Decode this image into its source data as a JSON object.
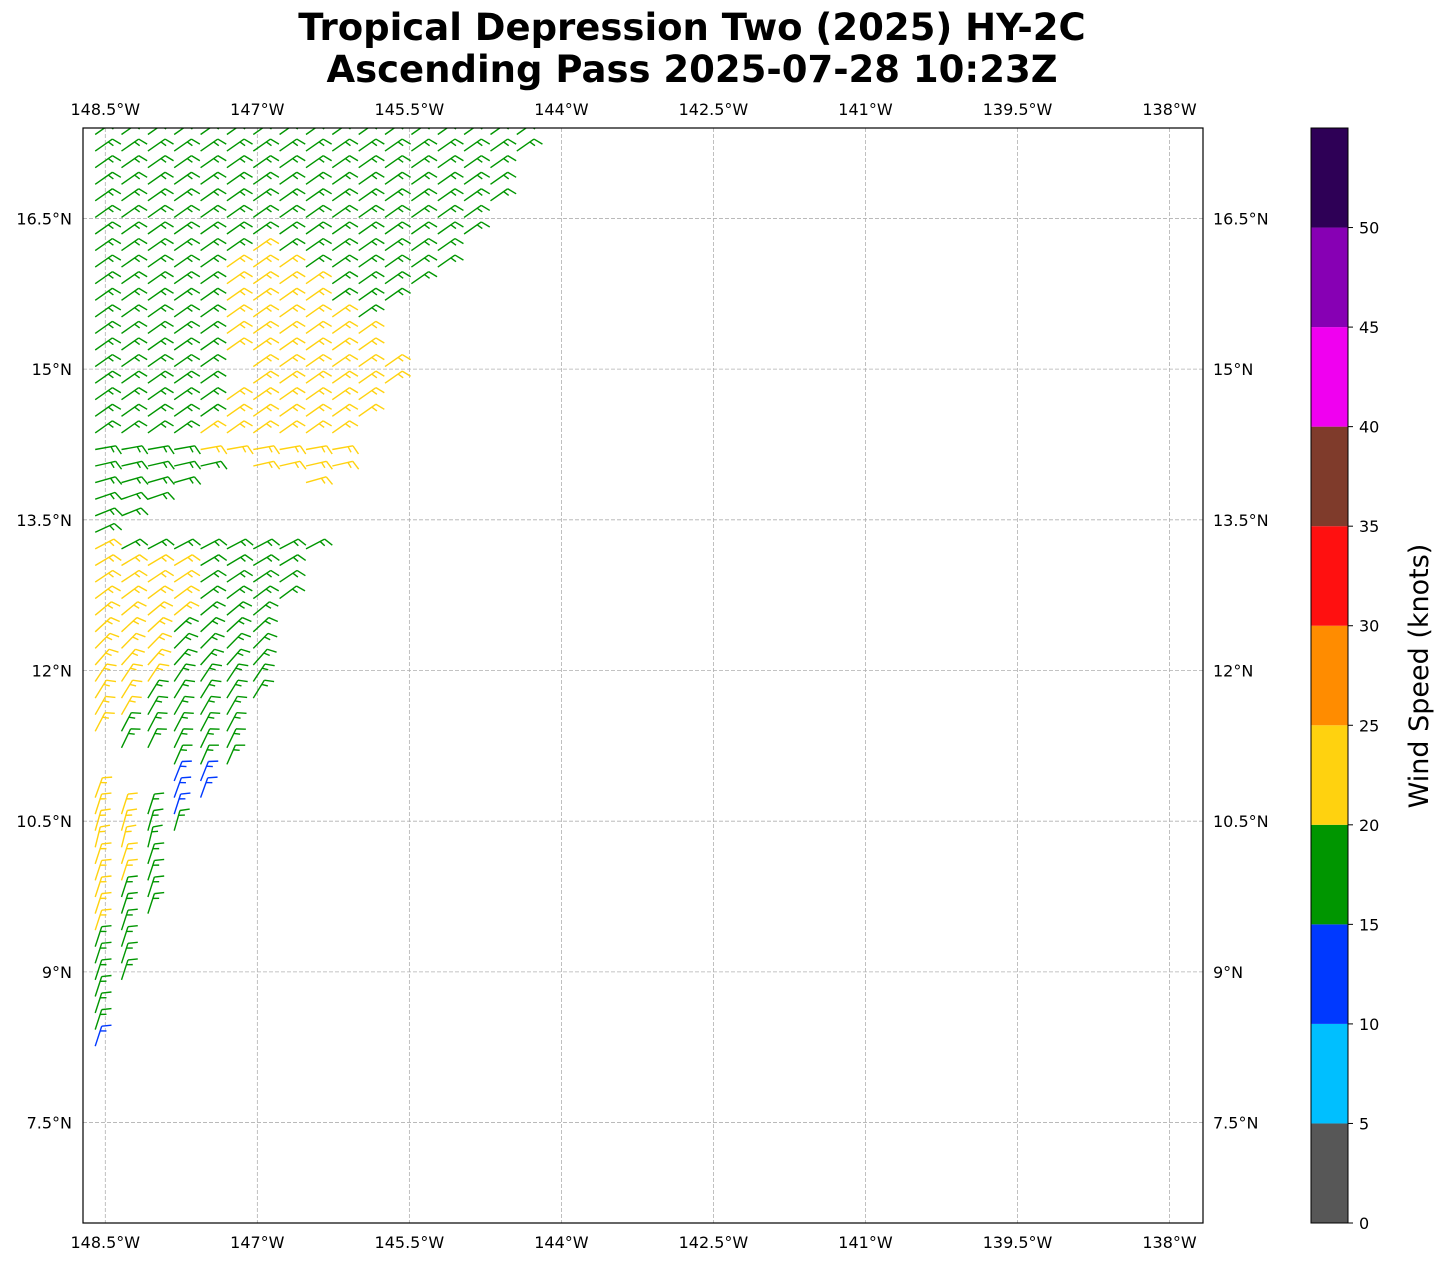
{
  "title": {
    "line1": "Tropical Depression Two (2025) HY-2C",
    "line2": "Ascending Pass 2025-07-28 10:23Z"
  },
  "colorbar": {
    "label": "Wind Speed (knots)",
    "ticks": [
      "0",
      "5",
      "10",
      "15",
      "20",
      "25",
      "30",
      "35",
      "40",
      "45",
      "50"
    ],
    "bins": [
      {
        "min": 0,
        "max": 5,
        "color": "#575757"
      },
      {
        "min": 5,
        "max": 10,
        "color": "#00bfff"
      },
      {
        "min": 10,
        "max": 15,
        "color": "#0039ff"
      },
      {
        "min": 15,
        "max": 20,
        "color": "#009600"
      },
      {
        "min": 20,
        "max": 25,
        "color": "#ffd20f"
      },
      {
        "min": 25,
        "max": 30,
        "color": "#ff8c00"
      },
      {
        "min": 30,
        "max": 35,
        "color": "#ff1010"
      },
      {
        "min": 35,
        "max": 40,
        "color": "#7f3b2b"
      },
      {
        "min": 40,
        "max": 45,
        "color": "#f000f0"
      },
      {
        "min": 45,
        "max": 50,
        "color": "#8700b4"
      },
      {
        "min": 50,
        "max": 55,
        "color": "#2e0056"
      }
    ]
  },
  "chart_data": {
    "type": "map",
    "title": "Tropical Depression Two (2025) HY-2C Ascending Pass 2025-07-28 10:23Z",
    "extent": {
      "lon_min": -148.72,
      "lon_max": -137.67,
      "lat_min": 6.5,
      "lat_max": 17.4
    },
    "grid": true,
    "lon_ticks": [
      {
        "value": -148.5,
        "label": "148.5°W"
      },
      {
        "value": -147.0,
        "label": "147°W"
      },
      {
        "value": -145.5,
        "label": "145.5°W"
      },
      {
        "value": -144.0,
        "label": "144°W"
      },
      {
        "value": -142.5,
        "label": "142.5°W"
      },
      {
        "value": -141.0,
        "label": "141°W"
      },
      {
        "value": -139.5,
        "label": "139.5°W"
      },
      {
        "value": -138.0,
        "label": "138°W"
      }
    ],
    "lat_ticks": [
      {
        "value": 16.5,
        "label": "16.5°N"
      },
      {
        "value": 15.0,
        "label": "15°N"
      },
      {
        "value": 13.5,
        "label": "13.5°N"
      },
      {
        "value": 12.0,
        "label": "12°N"
      },
      {
        "value": 10.5,
        "label": "10.5°N"
      },
      {
        "value": 9.0,
        "label": "9°N"
      },
      {
        "value": 7.5,
        "label": "7.5°N"
      }
    ],
    "swath": {
      "eastern_edge": [
        [
          7.7,
          -148.65
        ],
        [
          8.5,
          -148.4
        ],
        [
          9.5,
          -148.05
        ],
        [
          10.4,
          -147.72
        ],
        [
          10.9,
          -147.25
        ],
        [
          11.5,
          -147.0
        ],
        [
          12.3,
          -146.9
        ],
        [
          13.2,
          -146.4
        ],
        [
          14.0,
          -146.2
        ],
        [
          15.0,
          -145.6
        ],
        [
          16.2,
          -145.0
        ],
        [
          17.4,
          -144.1
        ]
      ],
      "western_edge_lon": -148.72
    },
    "wind_regions": [
      {
        "speed_class": "15-20 kt",
        "color": "#009600",
        "polygon": [
          [
            17.4,
            -148.72
          ],
          [
            17.4,
            -144.1
          ],
          [
            16.2,
            -145.0
          ],
          [
            15.5,
            -145.8
          ],
          [
            15.0,
            -147.5
          ],
          [
            14.0,
            -147.4
          ],
          [
            13.3,
            -148.72
          ]
        ]
      },
      {
        "speed_class": "20-25 kt",
        "color": "#ffd20f",
        "polygon": [
          [
            16.3,
            -147.1
          ],
          [
            15.6,
            -147.6
          ],
          [
            14.9,
            -147.2
          ],
          [
            14.2,
            -147.8
          ],
          [
            13.8,
            -146.3
          ],
          [
            14.8,
            -145.5
          ],
          [
            15.4,
            -145.9
          ]
        ]
      },
      {
        "speed_class": "15-20 kt",
        "color": "#009600",
        "polygon": [
          [
            13.3,
            -148.72
          ],
          [
            13.3,
            -146.4
          ],
          [
            12.3,
            -146.9
          ],
          [
            11.5,
            -147.0
          ],
          [
            10.9,
            -147.25
          ],
          [
            11.3,
            -148.72
          ]
        ]
      },
      {
        "speed_class": "20-25 kt",
        "color": "#ffd20f",
        "polygon": [
          [
            13.3,
            -148.72
          ],
          [
            13.0,
            -147.6
          ],
          [
            12.0,
            -148.0
          ],
          [
            11.5,
            -148.3
          ],
          [
            11.2,
            -148.72
          ]
        ]
      },
      {
        "speed_class": "10-15 kt",
        "color": "#0039ff",
        "polygon": [
          [
            11.1,
            -147.9
          ],
          [
            10.8,
            -147.3
          ],
          [
            10.4,
            -147.6
          ],
          [
            10.7,
            -148.0
          ]
        ]
      },
      {
        "speed_class": "20-25 kt",
        "color": "#ffd20f",
        "polygon": [
          [
            10.9,
            -148.72
          ],
          [
            10.5,
            -148.2
          ],
          [
            9.5,
            -148.3
          ],
          [
            8.8,
            -148.72
          ]
        ]
      },
      {
        "speed_class": "15-20 kt",
        "color": "#009600",
        "polygon": [
          [
            10.9,
            -148.3
          ],
          [
            10.4,
            -147.72
          ],
          [
            9.5,
            -148.05
          ],
          [
            8.5,
            -148.4
          ],
          [
            8.2,
            -148.72
          ],
          [
            9.0,
            -148.72
          ],
          [
            10.0,
            -148.25
          ]
        ]
      },
      {
        "speed_class": "10-15 kt",
        "color": "#0039ff",
        "polygon": [
          [
            8.4,
            -148.55
          ],
          [
            7.7,
            -148.72
          ],
          [
            8.1,
            -148.72
          ]
        ]
      }
    ]
  }
}
